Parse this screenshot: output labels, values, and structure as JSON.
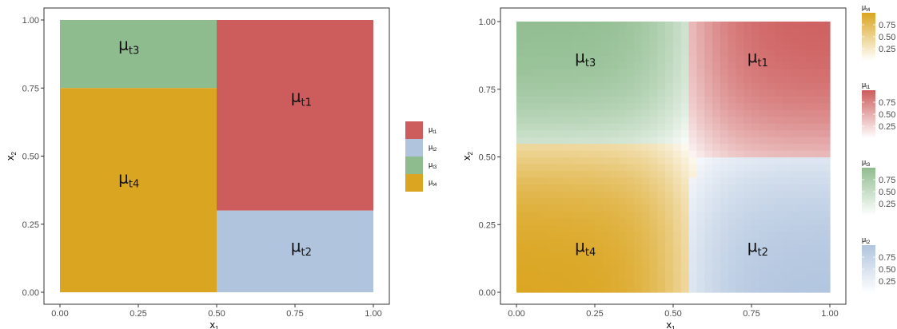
{
  "chart_data": [
    {
      "type": "heatmap",
      "title": "",
      "xlabel": {
        "base": "x",
        "sub": "1"
      },
      "ylabel": {
        "base": "x",
        "sub": "2"
      },
      "xlim": [
        0,
        1
      ],
      "ylim": [
        0,
        1
      ],
      "xticks": [
        "0.00",
        "0.25",
        "0.50",
        "0.75",
        "1.00"
      ],
      "yticks": [
        "0.00",
        "0.25",
        "0.50",
        "0.75",
        "1.00"
      ],
      "grid": false,
      "legend_position": "right",
      "regions": [
        {
          "name": "mu_t1",
          "x": [
            0.5,
            1.0
          ],
          "y": [
            0.3,
            1.0
          ],
          "color": "#CD5C5C"
        },
        {
          "name": "mu_t2",
          "x": [
            0.5,
            1.0
          ],
          "y": [
            0.0,
            0.3
          ],
          "color": "#B0C4DE"
        },
        {
          "name": "mu_t3",
          "x": [
            0.0,
            0.5
          ],
          "y": [
            0.75,
            1.0
          ],
          "color": "#8FBC8F"
        },
        {
          "name": "mu_t4",
          "x": [
            0.0,
            0.5
          ],
          "y": [
            0.0,
            0.75
          ],
          "color": "#DAA520"
        }
      ],
      "region_labels": [
        {
          "base": "μ",
          "sub": "t3",
          "x": 0.22,
          "y": 0.89
        },
        {
          "base": "μ",
          "sub": "t1",
          "x": 0.77,
          "y": 0.7
        },
        {
          "base": "μ",
          "sub": "t4",
          "x": 0.22,
          "y": 0.4
        },
        {
          "base": "μ",
          "sub": "t2",
          "x": 0.77,
          "y": 0.15
        }
      ],
      "legend": [
        {
          "base": "μ",
          "sub": "t1",
          "color": "#CD5C5C"
        },
        {
          "base": "μ",
          "sub": "t2",
          "color": "#B0C4DE"
        },
        {
          "base": "μ",
          "sub": "t3",
          "color": "#8FBC8F"
        },
        {
          "base": "μ",
          "sub": "t4",
          "color": "#DAA520"
        }
      ]
    },
    {
      "type": "heatmap",
      "title": "",
      "xlabel": {
        "base": "x",
        "sub": "1"
      },
      "ylabel": {
        "base": "x",
        "sub": "2"
      },
      "xlim": [
        0,
        1
      ],
      "ylim": [
        0,
        1
      ],
      "xticks": [
        "0.00",
        "0.25",
        "0.50",
        "0.75",
        "1.00"
      ],
      "yticks": [
        "0.00",
        "0.25",
        "0.50",
        "0.75",
        "1.00"
      ],
      "grid": false,
      "legend_position": "right",
      "grid_resolution": [
        40,
        40
      ],
      "region_labels": [
        {
          "base": "μ",
          "sub": "t3",
          "x": 0.22,
          "y": 0.85
        },
        {
          "base": "μ",
          "sub": "t1",
          "x": 0.77,
          "y": 0.85
        },
        {
          "base": "μ",
          "sub": "t4",
          "x": 0.22,
          "y": 0.15
        },
        {
          "base": "μ",
          "sub": "t2",
          "x": 0.77,
          "y": 0.15
        }
      ],
      "colorbars": [
        {
          "base": "μ",
          "sub": "t4",
          "color": "#DAA520",
          "range": [
            0,
            1
          ],
          "ticks": [
            "0.75",
            "0.50",
            "0.25"
          ]
        },
        {
          "base": "μ",
          "sub": "t1",
          "color": "#CD5C5C",
          "range": [
            0,
            1
          ],
          "ticks": [
            "0.75",
            "0.50",
            "0.25"
          ]
        },
        {
          "base": "μ",
          "sub": "t3",
          "color": "#8FBC8F",
          "range": [
            0,
            1
          ],
          "ticks": [
            "0.75",
            "0.50",
            "0.25"
          ]
        },
        {
          "base": "μ",
          "sub": "t2",
          "color": "#B0C4DE",
          "range": [
            0,
            1
          ],
          "ticks": [
            "0.75",
            "0.50",
            "0.25"
          ]
        }
      ]
    }
  ]
}
